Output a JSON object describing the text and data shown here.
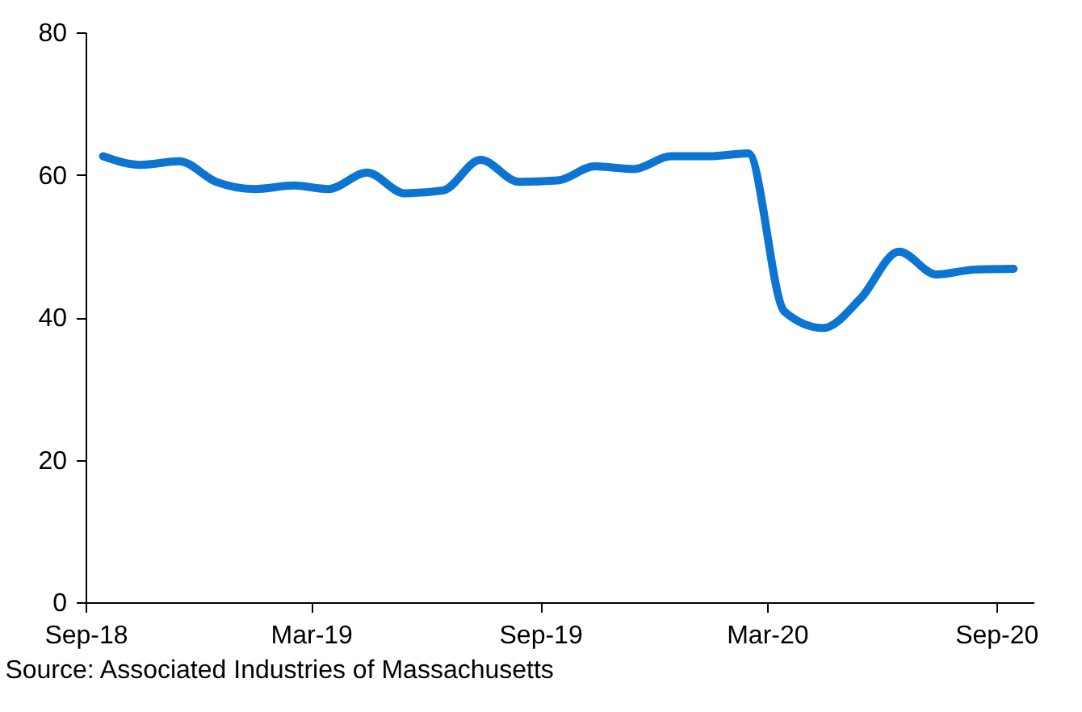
{
  "chart_data": {
    "type": "line",
    "x": [
      "2018-09-15",
      "2018-10-15",
      "2018-11-15",
      "2018-12-15",
      "2019-01-15",
      "2019-02-15",
      "2019-03-15",
      "2019-04-15",
      "2019-05-15",
      "2019-06-15",
      "2019-07-15",
      "2019-08-15",
      "2019-09-15",
      "2019-10-15",
      "2019-11-15",
      "2019-12-15",
      "2020-01-15",
      "2020-02-15",
      "2020-03-15",
      "2020-04-15",
      "2020-05-15",
      "2020-06-15",
      "2020-07-15",
      "2020-08-15",
      "2020-09-15"
    ],
    "series": [
      {
        "color": "#0b75d1",
        "values": [
          62.6,
          61.4,
          61.9,
          59.0,
          58.0,
          58.5,
          58.0,
          60.3,
          57.4,
          57.8,
          62.1,
          59.0,
          59.2,
          61.2,
          60.8,
          62.6,
          62.6,
          63.0,
          40.8,
          38.5,
          42.6,
          49.2,
          46.0,
          46.7,
          46.8
        ]
      }
    ],
    "xlim": [
      "2018-09-01",
      "2020-10-01"
    ],
    "xticks": [
      {
        "value": "2018-09-01",
        "label": "Sep-18"
      },
      {
        "value": "2019-03-01",
        "label": "Mar-19"
      },
      {
        "value": "2019-09-01",
        "label": "Sep-19"
      },
      {
        "value": "2020-03-01",
        "label": "Mar-20"
      },
      {
        "value": "2020-09-01",
        "label": "Sep-20"
      }
    ],
    "ylim": [
      0,
      80
    ],
    "yticks": [
      0,
      20,
      40,
      60,
      80
    ],
    "grid": false,
    "marker": "none",
    "line_style": "solid",
    "annotations": [
      "Source: Associated Industries of Massachusetts"
    ]
  }
}
